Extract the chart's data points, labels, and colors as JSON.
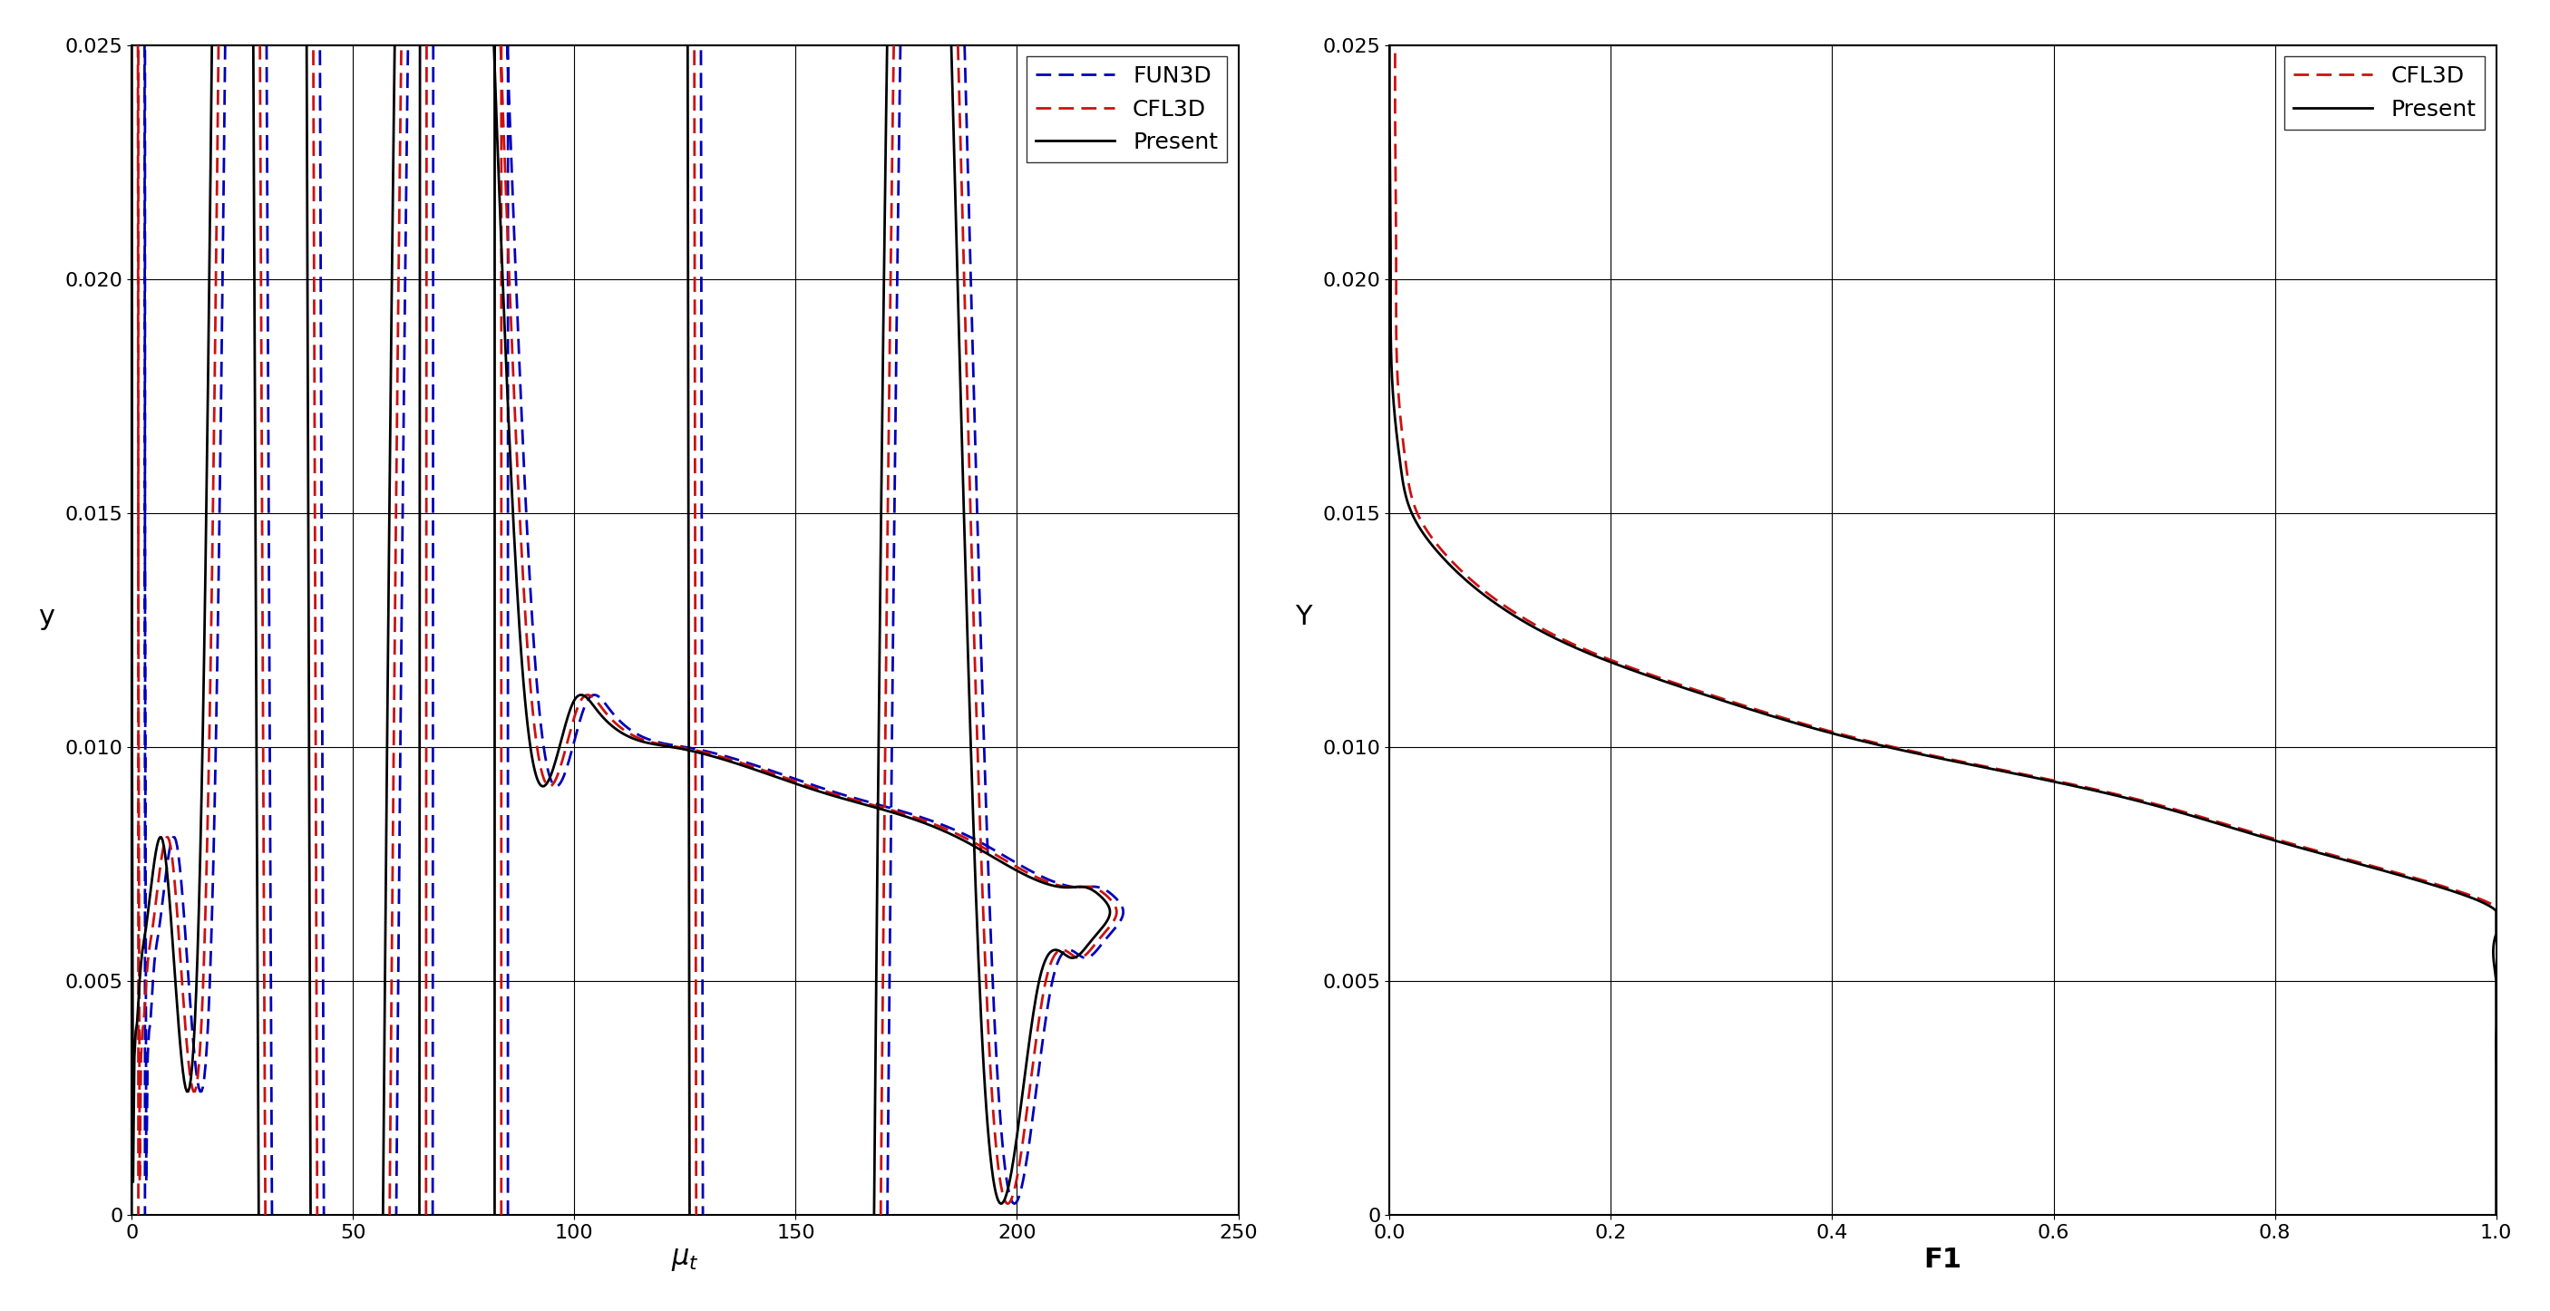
{
  "plot1": {
    "xlabel": "μ_t",
    "ylabel": "y",
    "xlim": [
      0,
      250
    ],
    "ylim": [
      0,
      0.025
    ],
    "xticks": [
      0,
      50,
      100,
      150,
      200,
      250
    ],
    "yticks": [
      0,
      0.005,
      0.01,
      0.015,
      0.02,
      0.025
    ],
    "legend": [
      {
        "label": "Present",
        "color": "#000000",
        "linestyle": "solid",
        "linewidth": 2.0
      },
      {
        "label": "CFL3D",
        "color": "#cc0000",
        "linestyle": "dashed",
        "linewidth": 1.8
      },
      {
        "label": "FUN3D",
        "color": "#0000cc",
        "linestyle": "dashed",
        "linewidth": 1.8
      }
    ]
  },
  "plot2": {
    "xlabel": "F1",
    "ylabel": "Y",
    "xlim": [
      0,
      1.0
    ],
    "ylim": [
      0,
      0.025
    ],
    "xticks": [
      0,
      0.2,
      0.4,
      0.6,
      0.8,
      1.0
    ],
    "yticks": [
      0,
      0.005,
      0.01,
      0.015,
      0.02,
      0.025
    ],
    "legend": [
      {
        "label": "Present",
        "color": "#000000",
        "linestyle": "solid",
        "linewidth": 2.0
      },
      {
        "label": "CFL3D",
        "color": "#cc0000",
        "linestyle": "dashed",
        "linewidth": 1.8
      }
    ]
  },
  "figure_background": "#ffffff",
  "grid_color": "#000000",
  "grid_linewidth": 0.8
}
